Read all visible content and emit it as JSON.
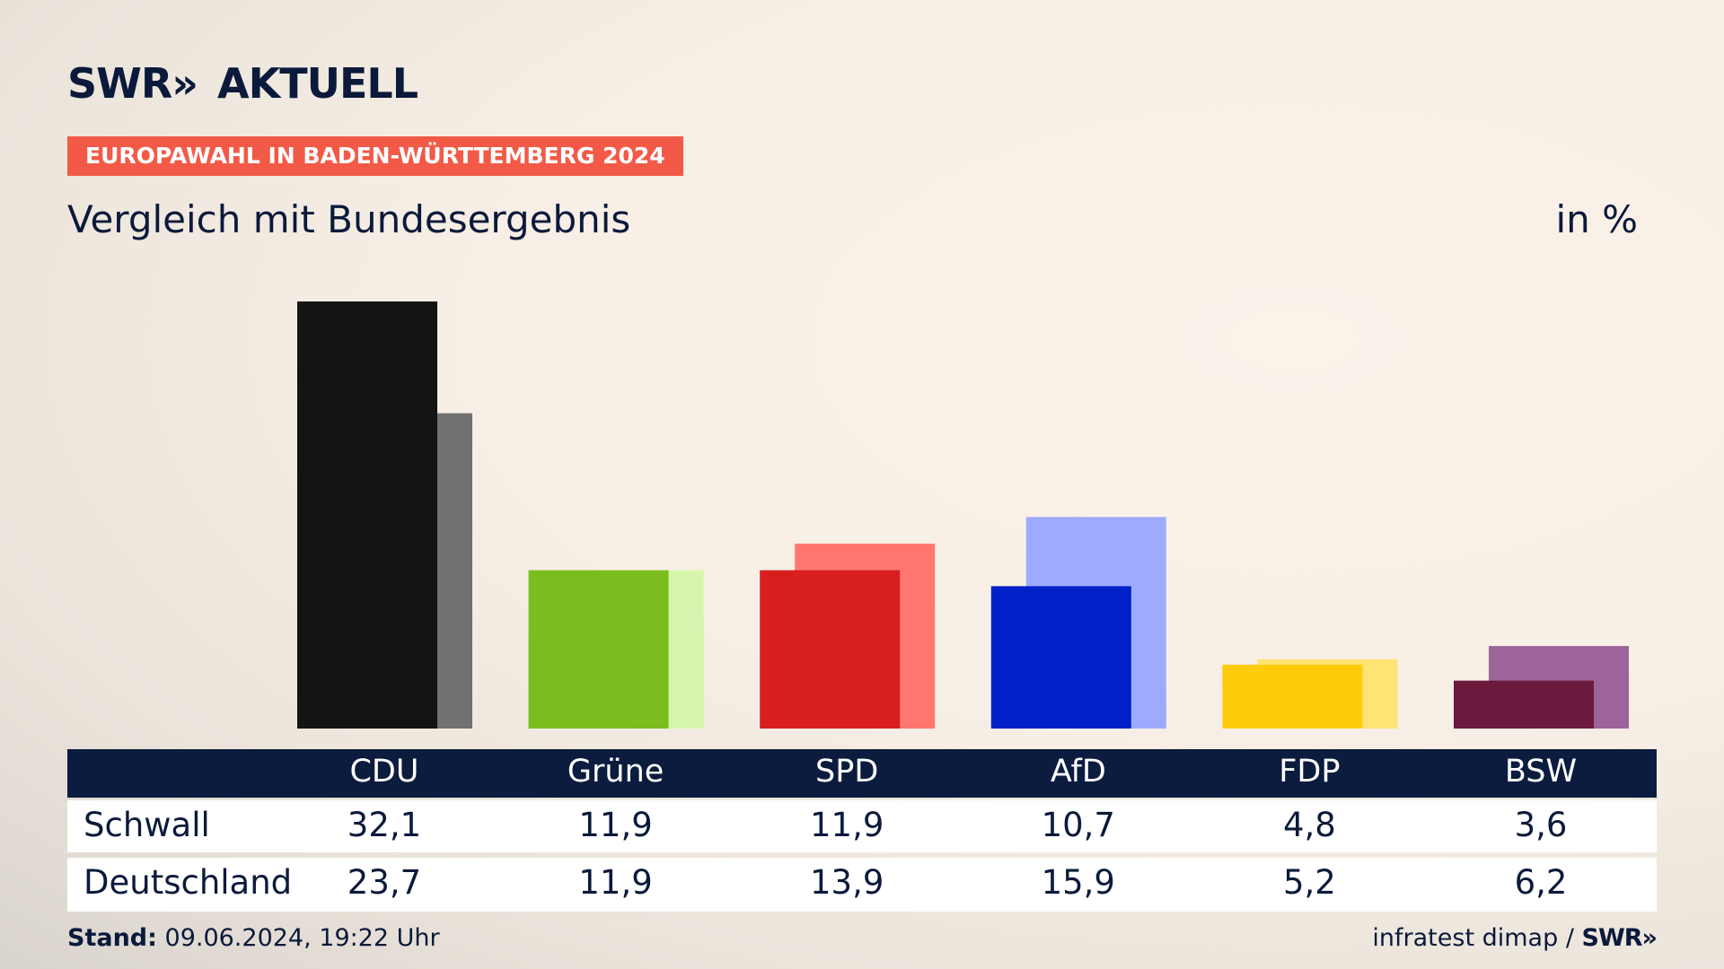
{
  "header": {
    "logo_main": "SWR",
    "logo_arrows": "»",
    "logo_sub": "AKTUELL",
    "badge": "EUROPAWAHL IN BADEN-WÜRTTEMBERG 2024",
    "subtitle": "Vergleich mit Bundesergebnis",
    "unit": "in %"
  },
  "table": {
    "row1_label": "Schwall",
    "row2_label": "Deutschland"
  },
  "footer": {
    "stand_label": "Stand:",
    "stand_value": "09.06.2024, 19:22 Uhr",
    "source": "infratest dimap /",
    "source_logo": "SWR»"
  },
  "chart_data": {
    "type": "bar",
    "categories": [
      "CDU",
      "Grüne",
      "SPD",
      "AfD",
      "FDP",
      "BSW"
    ],
    "series": [
      {
        "name": "Schwall",
        "values": [
          32.1,
          11.9,
          11.9,
          10.7,
          4.8,
          3.6
        ],
        "labels": [
          "32,1",
          "11,9",
          "11,9",
          "10,7",
          "4,8",
          "3,6"
        ],
        "colors": [
          "#141414",
          "#79be1e",
          "#d81e1f",
          "#0020c8",
          "#ffcc0a",
          "#6b1a3e"
        ]
      },
      {
        "name": "Deutschland",
        "values": [
          23.7,
          11.9,
          13.9,
          15.9,
          5.2,
          6.2
        ],
        "labels": [
          "23,7",
          "11,9",
          "13,9",
          "15,9",
          "5,2",
          "6,2"
        ],
        "colors": [
          "#717171",
          "#d6f5ad",
          "#ff7770",
          "#9dabff",
          "#ffe373",
          "#9c6499"
        ]
      }
    ],
    "ylim": [
      0,
      32.1
    ]
  }
}
